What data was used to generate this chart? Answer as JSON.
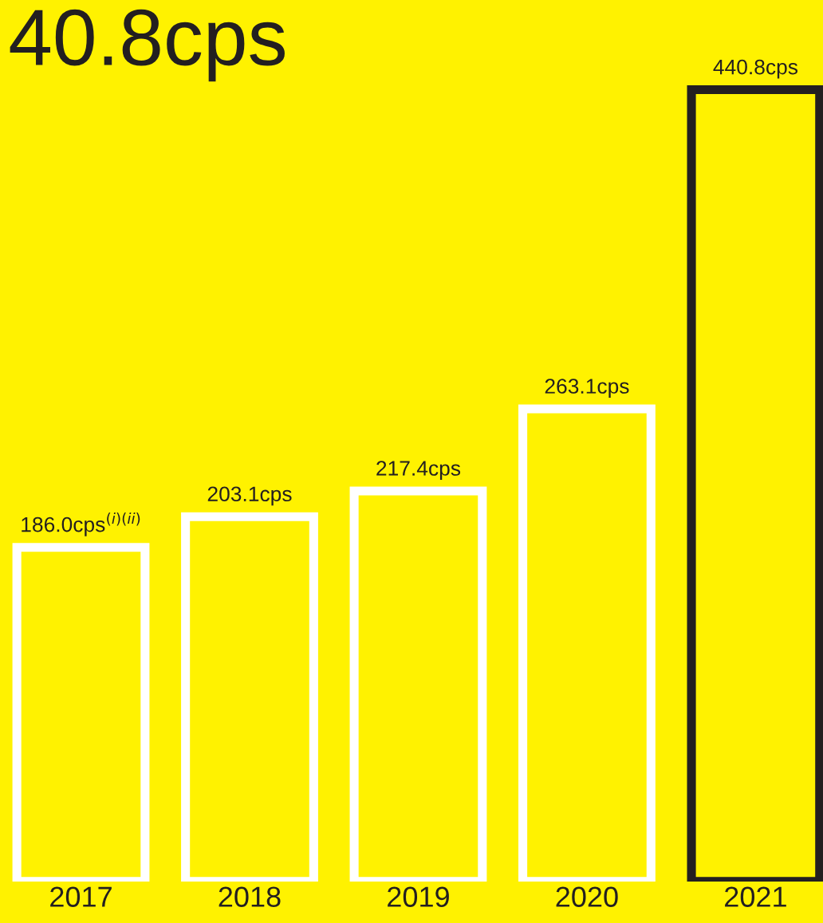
{
  "chart_data": {
    "type": "bar",
    "title": "40.8cps",
    "categories": [
      "2017",
      "2018",
      "2019",
      "2020",
      "2021"
    ],
    "values": [
      186.0,
      203.1,
      217.4,
      263.1,
      440.8
    ],
    "colors": [
      "#ffffff",
      "#ffffff",
      "#ffffff",
      "#ffffff",
      "#231f20"
    ],
    "value_labels": [
      "186.0cps$^{(i)(ii)}$",
      "203.1cps",
      "217.4cps",
      "263.1cps",
      "440.8cps"
    ],
    "legend": false
  }
}
